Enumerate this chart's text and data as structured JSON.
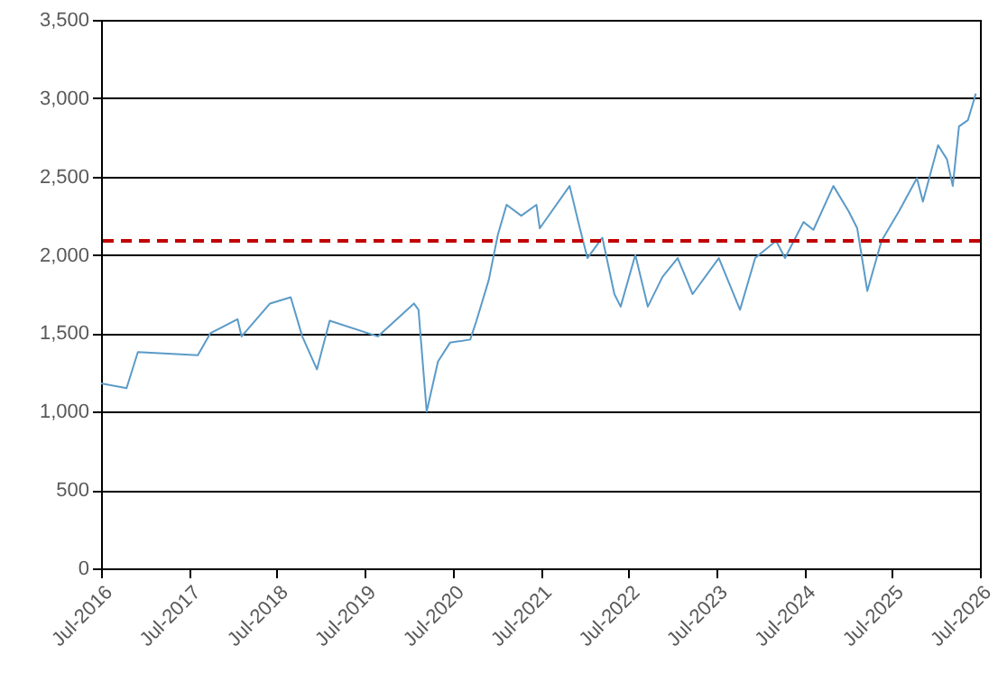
{
  "chart_data": {
    "type": "line",
    "x": [
      "2016-07-01",
      "2016-10-15",
      "2016-12-01",
      "2017-08-07",
      "2017-09-28",
      "2018-01-19",
      "2018-02-05",
      "2018-06-03",
      "2018-08-28",
      "2018-10-15",
      "2018-12-15",
      "2019-02-06",
      "2019-08-25",
      "2020-01-22",
      "2020-02-10",
      "2020-03-15",
      "2020-05-01",
      "2020-06-20",
      "2020-09-12",
      "2020-10-08",
      "2020-11-28",
      "2021-01-05",
      "2021-02-10",
      "2021-04-12",
      "2021-06-14",
      "2021-06-28",
      "2021-10-30",
      "2021-12-05",
      "2022-01-12",
      "2022-03-15",
      "2022-05-04",
      "2022-05-30",
      "2022-07-30",
      "2022-09-20",
      "2022-11-20",
      "2023-01-22",
      "2023-03-25",
      "2023-07-12",
      "2023-10-08",
      "2023-12-10",
      "2024-03-06",
      "2024-04-12",
      "2024-06-28",
      "2024-08-08",
      "2024-10-30",
      "2025-01-01",
      "2025-02-06",
      "2025-03-20",
      "2025-05-18",
      "2025-07-30",
      "2025-10-12",
      "2025-11-06",
      "2026-01-08",
      "2026-02-14",
      "2026-03-10",
      "2026-04-05",
      "2026-05-12",
      "2026-06-14"
    ],
    "series": [
      {
        "color": "#5b9bc8",
        "values": [
          1180,
          1150,
          1380,
          1360,
          1500,
          1590,
          1480,
          1690,
          1730,
          1480,
          1270,
          1580,
          1480,
          1690,
          1650,
          1000,
          1320,
          1440,
          1460,
          1580,
          1840,
          2130,
          2320,
          2250,
          2320,
          2170,
          2440,
          2210,
          1980,
          2110,
          1750,
          1670,
          2000,
          1670,
          1860,
          1980,
          1750,
          1980,
          1650,
          1980,
          2090,
          1980,
          2210,
          2160,
          2440,
          2280,
          2170,
          1770,
          2090,
          2280,
          2490,
          2340,
          2700,
          2610,
          2440,
          2820,
          2860,
          3030
        ]
      }
    ],
    "xlim": [
      "2016-07-01",
      "2026-07-01"
    ],
    "xticks": [
      {
        "value": "2016-07-01",
        "label": "Jul-2016"
      },
      {
        "value": "2017-07-01",
        "label": "Jul-2017"
      },
      {
        "value": "2018-07-01",
        "label": "Jul-2018"
      },
      {
        "value": "2019-07-01",
        "label": "Jul-2019"
      },
      {
        "value": "2020-07-01",
        "label": "Jul-2020"
      },
      {
        "value": "2021-07-01",
        "label": "Jul-2021"
      },
      {
        "value": "2022-07-01",
        "label": "Jul-2022"
      },
      {
        "value": "2023-07-01",
        "label": "Jul-2023"
      },
      {
        "value": "2024-07-01",
        "label": "Jul-2024"
      },
      {
        "value": "2025-07-01",
        "label": "Jul-2025"
      },
      {
        "value": "2026-07-01",
        "label": "Jul-2026"
      }
    ],
    "ylim": [
      0,
      3500
    ],
    "yticks": [
      0,
      {
        "value": 500,
        "label": "500"
      },
      {
        "value": 1000,
        "label": "1,000"
      },
      {
        "value": 1500,
        "label": "1,500"
      },
      {
        "value": 2000,
        "label": "2,000"
      },
      {
        "value": 2500,
        "label": "2,500"
      },
      {
        "value": 3000,
        "label": "3,000"
      },
      {
        "value": 3500,
        "label": "3,500"
      }
    ],
    "grid": "y",
    "line_style": "solid",
    "marker": "none",
    "ref_lines": [
      {
        "axis": "y",
        "value": 2090,
        "color": "#c00000",
        "line_style": "dashed"
      }
    ]
  }
}
